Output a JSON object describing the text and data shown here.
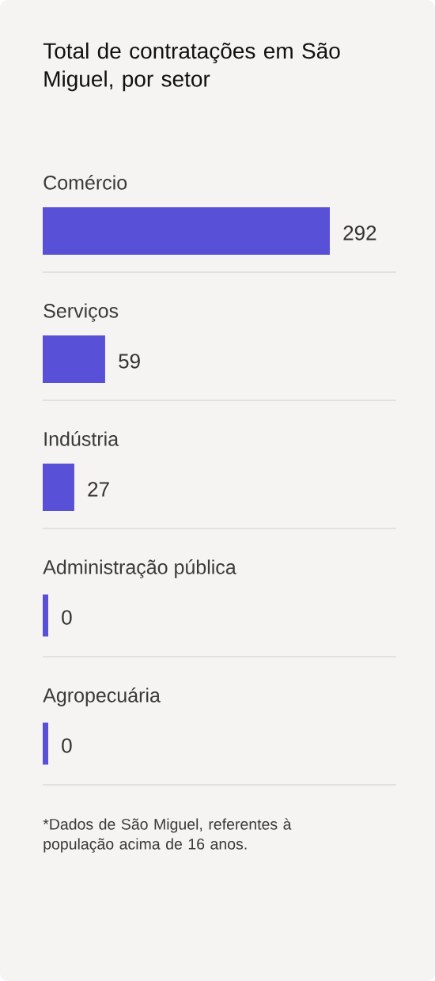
{
  "chart_data": {
    "type": "bar",
    "orientation": "horizontal",
    "title": "Total de contratações em São Miguel, por setor",
    "categories": [
      "Comércio",
      "Serviços",
      "Indústria",
      "Administração pública",
      "Agropecuária"
    ],
    "values": [
      292,
      59,
      27,
      0,
      0
    ],
    "color": "#5850d6",
    "data_labels": true,
    "annotations": [
      "*Dados de São Miguel, referentes à população acima de 16 anos."
    ]
  }
}
